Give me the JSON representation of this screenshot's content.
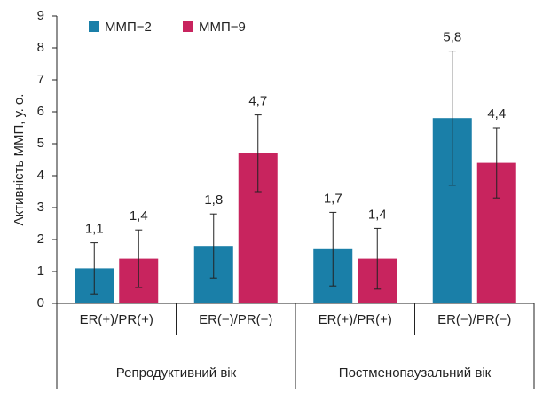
{
  "chart_data": {
    "type": "bar",
    "y_label": "Активність ММП, у. о.",
    "categories": [
      "ER(+)/PR(+)",
      "ER(−)/PR(−)",
      "ER(+)/PR(+)",
      "ER(−)/PR(−)"
    ],
    "group_labels": [
      "Репродуктивний вік",
      "Постменопаузальний вік"
    ],
    "series": [
      {
        "name": "ММП−2",
        "color": "#1a7fa8",
        "values": [
          1.1,
          1.8,
          1.7,
          5.8
        ],
        "value_labels": [
          "1,1",
          "1,8",
          "1,7",
          "5,8"
        ],
        "errors": [
          0.8,
          1.0,
          1.15,
          2.1
        ]
      },
      {
        "name": "ММП−9",
        "color": "#c8245e",
        "values": [
          1.4,
          4.7,
          1.4,
          4.4
        ],
        "value_labels": [
          "1,4",
          "4,7",
          "1,4",
          "4,4"
        ],
        "errors": [
          0.9,
          1.2,
          0.95,
          1.1
        ]
      }
    ],
    "ylim": [
      0,
      9
    ],
    "yticks": [
      0,
      1,
      2,
      3,
      4,
      5,
      6,
      7,
      8,
      9
    ],
    "grid": false,
    "legend": "top-left"
  }
}
